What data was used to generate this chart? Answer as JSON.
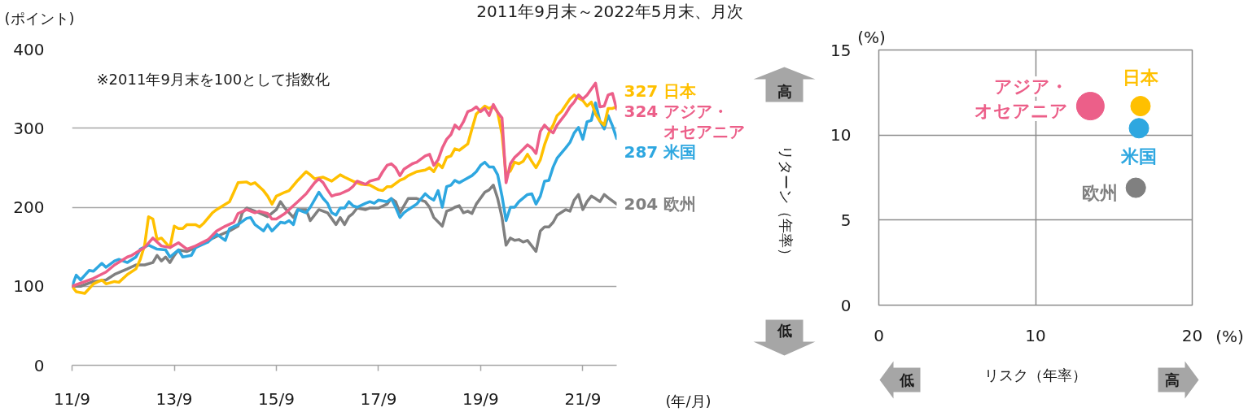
{
  "chart_data": [
    {
      "type": "line",
      "title": "2011年9月末～2022年5月末、月次",
      "ylabel": "(ポイント)",
      "xlabel": "(年/月)",
      "annotations": [
        "※2011年9月末を100として指数化"
      ],
      "xlim": [
        "2011-09",
        "2022-05"
      ],
      "xticks": [
        {
          "value": "2011-09",
          "label": "11/9"
        },
        {
          "value": "2013-09",
          "label": "13/9"
        },
        {
          "value": "2015-09",
          "label": "15/9"
        },
        {
          "value": "2017-09",
          "label": "17/9"
        },
        {
          "value": "2019-09",
          "label": "19/9"
        },
        {
          "value": "2021-09",
          "label": "21/9"
        }
      ],
      "ylim": [
        0,
        400
      ],
      "yticks": [
        0,
        100,
        200,
        300,
        400
      ],
      "grid": "y",
      "series": [
        {
          "name": "欧州",
          "color": "#808080",
          "x": [
            "2011-09",
            "2011-11",
            "2012-02",
            "2012-05",
            "2012-07",
            "2012-10",
            "2012-12",
            "2013-02",
            "2013-04",
            "2013-05",
            "2013-06",
            "2013-07",
            "2013-08",
            "2013-09",
            "2013-10",
            "2013-12",
            "2014-02",
            "2014-05",
            "2014-07",
            "2014-10",
            "2014-12",
            "2015-01",
            "2015-02",
            "2015-04",
            "2015-05",
            "2015-07",
            "2015-09",
            "2015-10",
            "2015-11",
            "2016-01",
            "2016-02",
            "2016-04",
            "2016-05",
            "2016-07",
            "2016-09",
            "2016-11",
            "2016-12",
            "2017-01",
            "2017-02",
            "2017-03",
            "2017-04",
            "2017-06",
            "2017-07",
            "2017-09",
            "2017-11",
            "2017-12",
            "2018-01",
            "2018-02",
            "2018-04",
            "2018-06",
            "2018-08",
            "2018-09",
            "2018-10",
            "2018-12",
            "2019-01",
            "2019-02",
            "2019-03",
            "2019-04",
            "2019-05",
            "2019-06",
            "2019-07",
            "2019-08",
            "2019-10",
            "2019-11",
            "2019-12",
            "2020-01",
            "2020-02",
            "2020-03",
            "2020-04",
            "2020-05",
            "2020-06",
            "2020-07",
            "2020-08",
            "2020-09",
            "2020-10",
            "2020-11",
            "2020-12",
            "2021-01",
            "2021-02",
            "2021-03",
            "2021-05",
            "2021-06",
            "2021-07",
            "2021-08",
            "2021-09",
            "2021-10",
            "2021-11",
            "2021-12",
            "2022-01",
            "2022-02",
            "2022-03",
            "2022-05"
          ],
          "values": [
            100,
            100,
            106,
            108,
            115,
            122,
            127,
            127,
            130,
            139,
            132,
            137,
            130,
            139,
            146,
            144,
            149,
            158,
            163,
            170,
            176,
            193,
            199,
            195,
            193,
            188,
            197,
            207,
            199,
            187,
            197,
            197,
            183,
            197,
            193,
            178,
            187,
            178,
            188,
            192,
            199,
            197,
            199,
            199,
            204,
            211,
            207,
            193,
            211,
            211,
            207,
            200,
            187,
            176,
            195,
            197,
            200,
            202,
            193,
            195,
            192,
            204,
            219,
            222,
            228,
            211,
            187,
            152,
            161,
            158,
            159,
            156,
            158,
            151,
            144,
            170,
            175,
            175,
            181,
            190,
            197,
            195,
            209,
            216,
            197,
            207,
            214,
            211,
            207,
            216,
            212,
            204
          ],
          "value_labels": [
            null,
            null,
            null,
            null,
            null,
            null,
            null,
            null,
            null,
            null,
            null,
            null,
            null,
            null,
            null,
            null,
            null,
            null,
            null,
            null,
            null,
            null,
            null,
            null,
            null,
            null,
            null,
            null,
            null,
            null,
            null,
            null,
            null,
            null,
            null,
            null,
            null,
            null,
            null,
            null,
            null,
            null,
            null,
            null,
            null,
            null,
            null,
            null,
            null,
            null,
            null,
            null,
            null,
            null,
            null,
            null,
            null,
            null,
            null,
            null,
            null,
            null,
            null,
            null,
            null,
            null,
            null,
            null,
            null,
            null,
            null,
            null,
            null,
            null,
            null,
            null,
            null,
            null,
            null,
            null,
            null,
            null,
            null,
            null,
            null,
            null,
            null,
            null,
            null,
            null,
            null,
            "204"
          ]
        },
        {
          "name": "米国",
          "color": "#2ea7e0",
          "x": [
            "2011-09",
            "2011-10",
            "2011-11",
            "2012-01",
            "2012-02",
            "2012-04",
            "2012-05",
            "2012-07",
            "2012-08",
            "2012-10",
            "2012-12",
            "2013-01",
            "2013-03",
            "2013-05",
            "2013-07",
            "2013-08",
            "2013-10",
            "2013-11",
            "2014-01",
            "2014-02",
            "2014-05",
            "2014-07",
            "2014-09",
            "2014-10",
            "2014-12",
            "2015-02",
            "2015-03",
            "2015-04",
            "2015-06",
            "2015-07",
            "2015-08",
            "2015-10",
            "2015-11",
            "2015-12",
            "2016-01",
            "2016-02",
            "2016-04",
            "2016-05",
            "2016-07",
            "2016-08",
            "2016-09",
            "2016-10",
            "2016-11",
            "2016-12",
            "2017-01",
            "2017-02",
            "2017-03",
            "2017-04",
            "2017-06",
            "2017-07",
            "2017-08",
            "2017-09",
            "2017-11",
            "2017-12",
            "2018-01",
            "2018-02",
            "2018-03",
            "2018-04",
            "2018-06",
            "2018-08",
            "2018-09",
            "2018-10",
            "2018-11",
            "2018-12",
            "2019-01",
            "2019-02",
            "2019-03",
            "2019-04",
            "2019-05",
            "2019-07",
            "2019-08",
            "2019-09",
            "2019-10",
            "2019-11",
            "2019-12",
            "2020-01",
            "2020-02",
            "2020-03",
            "2020-04",
            "2020-05",
            "2020-06",
            "2020-08",
            "2020-09",
            "2020-10",
            "2020-11",
            "2020-12",
            "2021-01",
            "2021-02",
            "2021-03",
            "2021-05",
            "2021-06",
            "2021-07",
            "2021-08",
            "2021-09",
            "2021-10",
            "2021-11",
            "2021-12",
            "2022-01",
            "2022-02",
            "2022-03",
            "2022-04",
            "2022-05"
          ],
          "values": [
            100,
            114,
            108,
            120,
            119,
            129,
            124,
            132,
            134,
            130,
            137,
            147,
            152,
            147,
            146,
            137,
            146,
            137,
            139,
            149,
            156,
            166,
            158,
            173,
            178,
            186,
            187,
            178,
            170,
            178,
            170,
            181,
            180,
            183,
            178,
            197,
            193,
            200,
            219,
            211,
            205,
            193,
            190,
            199,
            199,
            207,
            202,
            200,
            205,
            207,
            205,
            209,
            207,
            211,
            200,
            187,
            193,
            197,
            204,
            217,
            212,
            209,
            221,
            200,
            226,
            228,
            234,
            231,
            234,
            240,
            245,
            253,
            257,
            251,
            251,
            241,
            214,
            183,
            200,
            200,
            207,
            216,
            217,
            204,
            214,
            233,
            234,
            251,
            262,
            275,
            282,
            294,
            301,
            286,
            308,
            310,
            332,
            309,
            299,
            316,
            303,
            287
          ],
          "value_labels": [
            null,
            null,
            null,
            null,
            null,
            null,
            null,
            null,
            null,
            null,
            null,
            null,
            null,
            null,
            null,
            null,
            null,
            null,
            null,
            null,
            null,
            null,
            null,
            null,
            null,
            null,
            null,
            null,
            null,
            null,
            null,
            null,
            null,
            null,
            null,
            null,
            null,
            null,
            null,
            null,
            null,
            null,
            null,
            null,
            null,
            null,
            null,
            null,
            null,
            null,
            null,
            null,
            null,
            null,
            null,
            null,
            null,
            null,
            null,
            null,
            null,
            null,
            null,
            null,
            null,
            null,
            null,
            null,
            null,
            null,
            null,
            null,
            null,
            null,
            null,
            null,
            null,
            null,
            null,
            null,
            null,
            null,
            null,
            null,
            null,
            null,
            null,
            null,
            null,
            null,
            null,
            null,
            null,
            null,
            null,
            null,
            null,
            null,
            null,
            null,
            null,
            "287"
          ]
        },
        {
          "name": "日本",
          "color": "#ffc000",
          "x": [
            "2011-09",
            "2011-10",
            "2011-12",
            "2012-02",
            "2012-04",
            "2012-05",
            "2012-07",
            "2012-08",
            "2012-10",
            "2012-12",
            "2013-01",
            "2013-02",
            "2013-03",
            "2013-04",
            "2013-05",
            "2013-06",
            "2013-08",
            "2013-09",
            "2013-10",
            "2013-11",
            "2013-12",
            "2014-02",
            "2014-03",
            "2014-04",
            "2014-06",
            "2014-07",
            "2014-10",
            "2014-11",
            "2014-12",
            "2015-02",
            "2015-03",
            "2015-04",
            "2015-06",
            "2015-07",
            "2015-08",
            "2015-09",
            "2015-11",
            "2015-12",
            "2016-02",
            "2016-04",
            "2016-05",
            "2016-06",
            "2016-08",
            "2016-10",
            "2016-12",
            "2017-01",
            "2017-03",
            "2017-05",
            "2017-07",
            "2017-09",
            "2017-10",
            "2017-11",
            "2017-12",
            "2018-02",
            "2018-03",
            "2018-04",
            "2018-06",
            "2018-08",
            "2018-09",
            "2018-10",
            "2018-11",
            "2018-12",
            "2019-01",
            "2019-02",
            "2019-03",
            "2019-04",
            "2019-06",
            "2019-07",
            "2019-08",
            "2019-10",
            "2019-11",
            "2019-12",
            "2020-01",
            "2020-02",
            "2020-03",
            "2020-04",
            "2020-05",
            "2020-06",
            "2020-07",
            "2020-08",
            "2020-09",
            "2020-10",
            "2020-11",
            "2020-12",
            "2021-01",
            "2021-02",
            "2021-03",
            "2021-04",
            "2021-06",
            "2021-07",
            "2021-08",
            "2021-09",
            "2021-10",
            "2021-11",
            "2021-12",
            "2022-01",
            "2022-02",
            "2022-03",
            "2022-04",
            "2022-05"
          ],
          "values": [
            100,
            93,
            91,
            103,
            108,
            103,
            106,
            105,
            115,
            122,
            134,
            152,
            188,
            185,
            159,
            161,
            149,
            176,
            173,
            173,
            178,
            178,
            175,
            180,
            193,
            197,
            207,
            219,
            231,
            232,
            229,
            231,
            221,
            214,
            204,
            214,
            219,
            221,
            234,
            245,
            241,
            236,
            238,
            233,
            241,
            238,
            233,
            229,
            228,
            222,
            221,
            226,
            226,
            234,
            236,
            240,
            245,
            247,
            250,
            245,
            255,
            250,
            263,
            265,
            274,
            272,
            280,
            299,
            318,
            328,
            325,
            328,
            320,
            292,
            241,
            246,
            257,
            255,
            258,
            267,
            258,
            250,
            260,
            279,
            294,
            304,
            316,
            321,
            337,
            342,
            338,
            335,
            328,
            333,
            318,
            309,
            304,
            325,
            325,
            327
          ],
          "value_labels": [
            null,
            null,
            null,
            null,
            null,
            null,
            null,
            null,
            null,
            null,
            null,
            null,
            null,
            null,
            null,
            null,
            null,
            null,
            null,
            null,
            null,
            null,
            null,
            null,
            null,
            null,
            null,
            null,
            null,
            null,
            null,
            null,
            null,
            null,
            null,
            null,
            null,
            null,
            null,
            null,
            null,
            null,
            null,
            null,
            null,
            null,
            null,
            null,
            null,
            null,
            null,
            null,
            null,
            null,
            null,
            null,
            null,
            null,
            null,
            null,
            null,
            null,
            null,
            null,
            null,
            null,
            null,
            null,
            null,
            null,
            null,
            null,
            null,
            null,
            null,
            null,
            null,
            null,
            null,
            null,
            null,
            null,
            null,
            null,
            null,
            null,
            null,
            null,
            null,
            null,
            null,
            null,
            null,
            null,
            null,
            null,
            null,
            null,
            null,
            "327"
          ]
        },
        {
          "name": "アジア・オセアニア",
          "color": "#ec5f89",
          "x": [
            "2011-09",
            "2012-02",
            "2012-05",
            "2012-07",
            "2012-10",
            "2012-11",
            "2013-02",
            "2013-04",
            "2013-06",
            "2013-08",
            "2013-10",
            "2013-12",
            "2014-02",
            "2014-05",
            "2014-07",
            "2014-09",
            "2014-11",
            "2014-12",
            "2015-02",
            "2015-04",
            "2015-05",
            "2015-07",
            "2015-08",
            "2015-09",
            "2015-11",
            "2015-12",
            "2016-02",
            "2016-04",
            "2016-06",
            "2016-07",
            "2016-08",
            "2016-09",
            "2016-10",
            "2016-11",
            "2016-12",
            "2017-02",
            "2017-03",
            "2017-04",
            "2017-06",
            "2017-07",
            "2017-09",
            "2017-10",
            "2017-11",
            "2017-12",
            "2018-01",
            "2018-02",
            "2018-03",
            "2018-05",
            "2018-06",
            "2018-08",
            "2018-09",
            "2018-10",
            "2018-11",
            "2018-12",
            "2019-01",
            "2019-02",
            "2019-03",
            "2019-04",
            "2019-05",
            "2019-06",
            "2019-07",
            "2019-08",
            "2019-09",
            "2019-10",
            "2019-11",
            "2019-12",
            "2020-01",
            "2020-02",
            "2020-03",
            "2020-04",
            "2020-05",
            "2020-06",
            "2020-08",
            "2020-09",
            "2020-10",
            "2020-11",
            "2020-12",
            "2021-01",
            "2021-02",
            "2021-03",
            "2021-05",
            "2021-06",
            "2021-07",
            "2021-08",
            "2021-09",
            "2021-10",
            "2021-12",
            "2022-01",
            "2022-02",
            "2022-03",
            "2022-04",
            "2022-05"
          ],
          "values": [
            100,
            110,
            118,
            127,
            137,
            139,
            149,
            161,
            151,
            149,
            155,
            147,
            151,
            159,
            170,
            176,
            181,
            192,
            197,
            193,
            195,
            192,
            185,
            185,
            192,
            197,
            207,
            217,
            231,
            236,
            231,
            222,
            214,
            216,
            217,
            222,
            226,
            233,
            229,
            233,
            236,
            245,
            253,
            255,
            250,
            240,
            248,
            255,
            257,
            265,
            267,
            253,
            260,
            275,
            286,
            292,
            304,
            299,
            308,
            321,
            323,
            327,
            321,
            325,
            316,
            330,
            320,
            313,
            231,
            255,
            263,
            268,
            279,
            275,
            268,
            296,
            304,
            298,
            294,
            304,
            318,
            327,
            333,
            342,
            337,
            342,
            357,
            327,
            328,
            342,
            344,
            324
          ],
          "value_labels": [
            null,
            null,
            null,
            null,
            null,
            null,
            null,
            null,
            null,
            null,
            null,
            null,
            null,
            null,
            null,
            null,
            null,
            null,
            null,
            null,
            null,
            null,
            null,
            null,
            null,
            null,
            null,
            null,
            null,
            null,
            null,
            null,
            null,
            null,
            null,
            null,
            null,
            null,
            null,
            null,
            null,
            null,
            null,
            null,
            null,
            null,
            null,
            null,
            null,
            null,
            null,
            null,
            null,
            null,
            null,
            null,
            null,
            null,
            null,
            null,
            null,
            null,
            null,
            null,
            null,
            null,
            null,
            null,
            null,
            null,
            null,
            null,
            null,
            null,
            null,
            null,
            null,
            null,
            null,
            null,
            null,
            null,
            null,
            null,
            null,
            null,
            null,
            null,
            null,
            null,
            null,
            "324"
          ]
        }
      ]
    },
    {
      "type": "bubble",
      "xlabel": "リスク（年率）",
      "ylabel": "リターン（年率）",
      "xlim": [
        0,
        20
      ],
      "xticks": [
        0,
        10,
        20
      ],
      "ylim": [
        0,
        15
      ],
      "yticks": [
        0,
        5,
        10,
        15
      ],
      "grid": true,
      "annotations": [
        "(%)",
        "(%)",
        "高",
        "低",
        "低",
        "高"
      ],
      "series": [
        {
          "name": "欧州",
          "color": "#808080",
          "x": [
            16.4
          ],
          "values": [
            6.9
          ],
          "sizes": [
            0.5
          ]
        },
        {
          "name": "米国",
          "color": "#2ea7e0",
          "x": [
            16.6
          ],
          "values": [
            10.4
          ],
          "sizes": [
            0.5
          ]
        },
        {
          "name": "日本",
          "color": "#ffc000",
          "x": [
            16.7
          ],
          "values": [
            11.7
          ],
          "sizes": [
            0.5
          ]
        },
        {
          "name": "アジア・オセアニア",
          "color": "#ec5f89",
          "x": [
            13.5
          ],
          "values": [
            11.7
          ],
          "sizes": [
            1
          ]
        }
      ]
    }
  ]
}
